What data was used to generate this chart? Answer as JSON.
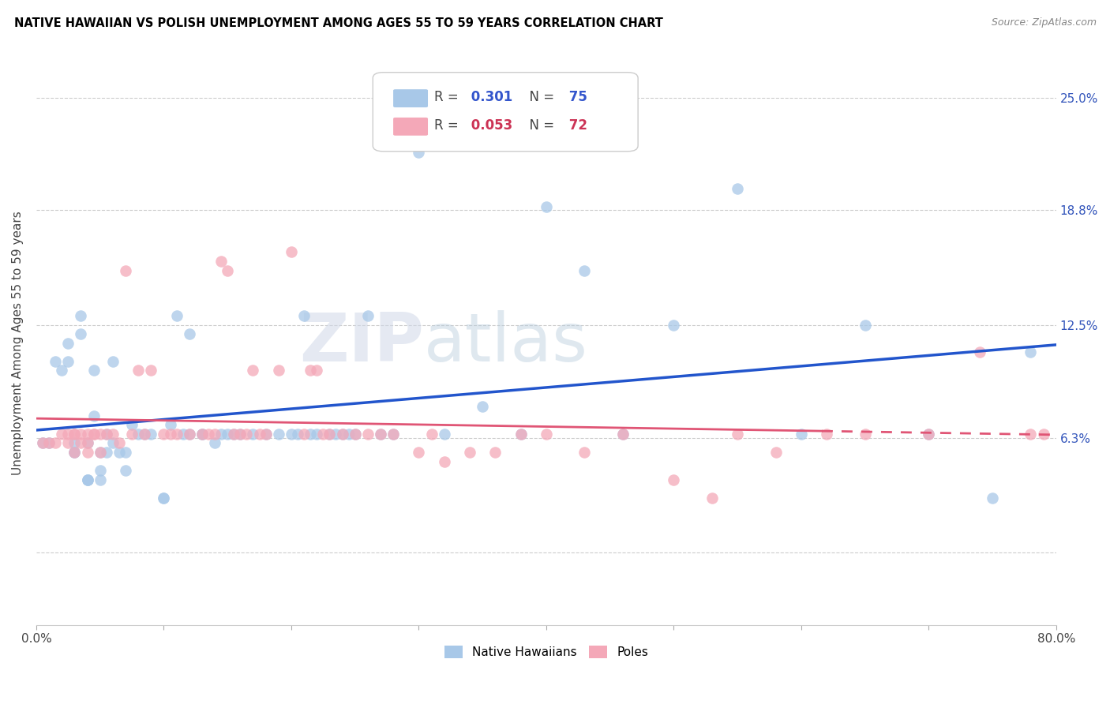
{
  "title": "NATIVE HAWAIIAN VS POLISH UNEMPLOYMENT AMONG AGES 55 TO 59 YEARS CORRELATION CHART",
  "source": "Source: ZipAtlas.com",
  "ylabel": "Unemployment Among Ages 55 to 59 years",
  "xlim": [
    0.0,
    0.8
  ],
  "ylim": [
    -0.04,
    0.27
  ],
  "xticks": [
    0.0,
    0.1,
    0.2,
    0.3,
    0.4,
    0.5,
    0.6,
    0.7,
    0.8
  ],
  "xticklabels": [
    "0.0%",
    "",
    "",
    "",
    "",
    "",
    "",
    "",
    "80.0%"
  ],
  "ytick_positions": [
    0.0,
    0.063,
    0.125,
    0.188,
    0.25
  ],
  "ytick_labels": [
    "",
    "6.3%",
    "12.5%",
    "18.8%",
    "25.0%"
  ],
  "native_hawaiian_R": "0.301",
  "native_hawaiian_N": "75",
  "poles_R": "0.053",
  "poles_N": "72",
  "watermark_zip": "ZIP",
  "watermark_atlas": "atlas",
  "color_blue": "#a8c8e8",
  "color_pink": "#f4a8b8",
  "line_blue": "#2255cc",
  "line_pink": "#e05575",
  "native_hawaiian_x": [
    0.005,
    0.01,
    0.015,
    0.02,
    0.025,
    0.025,
    0.03,
    0.03,
    0.03,
    0.035,
    0.035,
    0.04,
    0.04,
    0.04,
    0.04,
    0.045,
    0.045,
    0.05,
    0.05,
    0.05,
    0.055,
    0.055,
    0.06,
    0.06,
    0.065,
    0.07,
    0.07,
    0.075,
    0.08,
    0.085,
    0.09,
    0.1,
    0.1,
    0.105,
    0.11,
    0.115,
    0.12,
    0.12,
    0.13,
    0.13,
    0.14,
    0.145,
    0.15,
    0.155,
    0.16,
    0.17,
    0.18,
    0.19,
    0.2,
    0.205,
    0.21,
    0.215,
    0.22,
    0.23,
    0.235,
    0.24,
    0.245,
    0.25,
    0.26,
    0.27,
    0.28,
    0.3,
    0.32,
    0.35,
    0.38,
    0.4,
    0.43,
    0.46,
    0.5,
    0.55,
    0.6,
    0.65,
    0.7,
    0.75,
    0.78
  ],
  "native_hawaiian_y": [
    0.06,
    0.06,
    0.105,
    0.1,
    0.115,
    0.105,
    0.06,
    0.055,
    0.055,
    0.13,
    0.12,
    0.06,
    0.04,
    0.04,
    0.04,
    0.1,
    0.075,
    0.055,
    0.045,
    0.04,
    0.065,
    0.055,
    0.105,
    0.06,
    0.055,
    0.045,
    0.055,
    0.07,
    0.065,
    0.065,
    0.065,
    0.03,
    0.03,
    0.07,
    0.13,
    0.065,
    0.065,
    0.12,
    0.065,
    0.065,
    0.06,
    0.065,
    0.065,
    0.065,
    0.065,
    0.065,
    0.065,
    0.065,
    0.065,
    0.065,
    0.13,
    0.065,
    0.065,
    0.065,
    0.065,
    0.065,
    0.065,
    0.065,
    0.13,
    0.065,
    0.065,
    0.22,
    0.065,
    0.08,
    0.065,
    0.19,
    0.155,
    0.065,
    0.125,
    0.2,
    0.065,
    0.125,
    0.065,
    0.03,
    0.11
  ],
  "poles_x": [
    0.005,
    0.01,
    0.015,
    0.02,
    0.025,
    0.025,
    0.03,
    0.03,
    0.03,
    0.035,
    0.035,
    0.04,
    0.04,
    0.04,
    0.045,
    0.045,
    0.05,
    0.05,
    0.055,
    0.06,
    0.065,
    0.07,
    0.075,
    0.08,
    0.085,
    0.09,
    0.1,
    0.105,
    0.11,
    0.12,
    0.13,
    0.135,
    0.14,
    0.145,
    0.15,
    0.155,
    0.16,
    0.165,
    0.17,
    0.175,
    0.18,
    0.19,
    0.2,
    0.21,
    0.215,
    0.22,
    0.225,
    0.23,
    0.24,
    0.25,
    0.26,
    0.27,
    0.28,
    0.3,
    0.31,
    0.32,
    0.34,
    0.36,
    0.38,
    0.4,
    0.43,
    0.46,
    0.5,
    0.53,
    0.55,
    0.58,
    0.62,
    0.65,
    0.7,
    0.74,
    0.78,
    0.79
  ],
  "poles_y": [
    0.06,
    0.06,
    0.06,
    0.065,
    0.065,
    0.06,
    0.065,
    0.065,
    0.055,
    0.065,
    0.06,
    0.065,
    0.06,
    0.055,
    0.065,
    0.065,
    0.065,
    0.055,
    0.065,
    0.065,
    0.06,
    0.155,
    0.065,
    0.1,
    0.065,
    0.1,
    0.065,
    0.065,
    0.065,
    0.065,
    0.065,
    0.065,
    0.065,
    0.16,
    0.155,
    0.065,
    0.065,
    0.065,
    0.1,
    0.065,
    0.065,
    0.1,
    0.165,
    0.065,
    0.1,
    0.1,
    0.065,
    0.065,
    0.065,
    0.065,
    0.065,
    0.065,
    0.065,
    0.055,
    0.065,
    0.05,
    0.055,
    0.055,
    0.065,
    0.065,
    0.055,
    0.065,
    0.04,
    0.03,
    0.065,
    0.055,
    0.065,
    0.065,
    0.065,
    0.11,
    0.065,
    0.065
  ]
}
